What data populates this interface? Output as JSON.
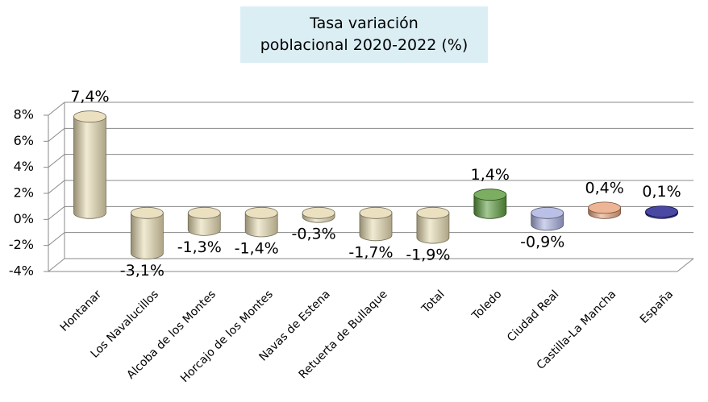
{
  "chart_data": {
    "type": "bar3d",
    "title": [
      "Tasa variación",
      "poblacional 2020-2022 (%)"
    ],
    "categories": [
      "Hontanar",
      "Los Navalucillos",
      "Alcoba de los Montes",
      "Horcajo de los Montes",
      "Navas de Estena",
      "Retuerta de Bullaque",
      "Total",
      "Toledo",
      "Ciudad Real",
      "Castilla-La Mancha",
      "España"
    ],
    "values": [
      7.4,
      -3.1,
      -1.3,
      -1.4,
      -0.3,
      -1.7,
      -1.9,
      1.4,
      -0.9,
      0.4,
      0.1
    ],
    "value_labels": [
      "7,4%",
      "-3,1%",
      "-1,3%",
      "-1,4%",
      "-0,3%",
      "-1,7%",
      "-1,9%",
      "1,4%",
      "-0,9%",
      "0,4%",
      "0,1%"
    ],
    "colors": [
      "#e6dab0",
      "#e6dab0",
      "#e6dab0",
      "#e6dab0",
      "#e6dab0",
      "#e6dab0",
      "#e6dab0",
      "#5a9a3a",
      "#a9b0e0",
      "#e8a27a",
      "#1c1c8c"
    ],
    "ylim": [
      -4,
      8
    ],
    "yticks": [
      {
        "value": 8,
        "label": "8%"
      },
      {
        "value": 6,
        "label": "6%"
      },
      {
        "value": 4,
        "label": "4%"
      },
      {
        "value": 2,
        "label": "2%"
      },
      {
        "value": 0,
        "label": "0%"
      },
      {
        "value": -2,
        "label": "-2%"
      },
      {
        "value": -4,
        "label": "-4%"
      }
    ],
    "grid": true
  }
}
